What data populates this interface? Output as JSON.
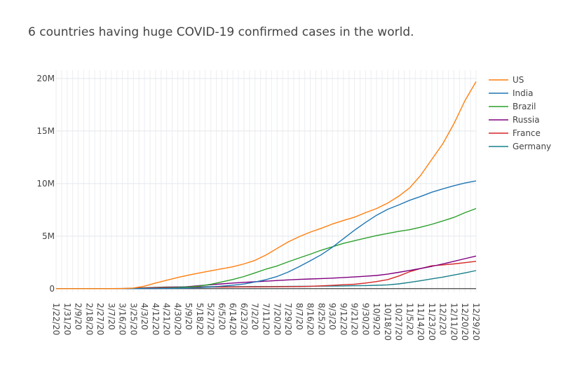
{
  "chart_data": {
    "type": "line",
    "title": "6 countries having huge COVID-19 confirmed cases in the world.",
    "xlabel": "",
    "ylabel": "",
    "grid": true,
    "legend_position": "top-right",
    "x_tick_labels": [
      "1/22/20",
      "1/31/20",
      "2/9/20",
      "2/18/20",
      "2/27/20",
      "3/7/20",
      "3/16/20",
      "3/25/20",
      "4/3/20",
      "4/12/20",
      "4/21/20",
      "4/30/20",
      "5/9/20",
      "5/18/20",
      "5/27/20",
      "6/5/20",
      "6/14/20",
      "6/23/20",
      "7/2/20",
      "7/11/20",
      "7/20/20",
      "7/29/20",
      "8/7/20",
      "8/16/20",
      "8/25/20",
      "9/3/20",
      "9/12/20",
      "9/21/20",
      "9/30/20",
      "10/9/20",
      "10/18/20",
      "10/27/20",
      "11/5/20",
      "11/14/20",
      "11/23/20",
      "12/2/20",
      "12/11/20",
      "12/20/20",
      "12/29/20"
    ],
    "y_ticks": [
      0,
      5000000,
      10000000,
      15000000,
      20000000
    ],
    "y_tick_labels": [
      "0",
      "5M",
      "10M",
      "15M",
      "20M"
    ],
    "ylim": [
      -350000,
      20800000
    ],
    "series": [
      {
        "name": "US",
        "color": "#ff7f0e",
        "values": [
          0,
          0,
          0,
          0,
          0,
          300,
          3500,
          54000,
          240000,
          530000,
          800000,
          1060000,
          1290000,
          1500000,
          1700000,
          1890000,
          2080000,
          2350000,
          2690000,
          3200000,
          3830000,
          4450000,
          4950000,
          5380000,
          5740000,
          6150000,
          6480000,
          6800000,
          7230000,
          7620000,
          8140000,
          8800000,
          9600000,
          10800000,
          12300000,
          13800000,
          15700000,
          17900000,
          19700000
        ]
      },
      {
        "name": "India",
        "color": "#1f77b4",
        "values": [
          0,
          1,
          3,
          3,
          3,
          34,
          114,
          657,
          2550,
          8450,
          20000,
          35000,
          60000,
          100000,
          160000,
          240000,
          330000,
          440000,
          630000,
          860000,
          1160000,
          1580000,
          2090000,
          2650000,
          3230000,
          3940000,
          4750000,
          5560000,
          6300000,
          6980000,
          7550000,
          7960000,
          8410000,
          8780000,
          9180000,
          9500000,
          9800000,
          10050000,
          10250000
        ]
      },
      {
        "name": "Brazil",
        "color": "#2ca02c",
        "values": [
          0,
          0,
          0,
          0,
          1,
          19,
          234,
          2433,
          10000,
          22000,
          43000,
          85000,
          156000,
          255000,
          410000,
          640000,
          870000,
          1150000,
          1500000,
          1860000,
          2160000,
          2550000,
          2920000,
          3280000,
          3660000,
          3980000,
          4310000,
          4560000,
          4810000,
          5050000,
          5250000,
          5450000,
          5610000,
          5850000,
          6120000,
          6440000,
          6780000,
          7230000,
          7620000
        ]
      },
      {
        "name": "Russia",
        "color": "#800080",
        "values": [
          0,
          2,
          2,
          2,
          2,
          10,
          93,
          658,
          4700,
          18000,
          57000,
          107000,
          200000,
          290000,
          370000,
          450000,
          530000,
          600000,
          650000,
          710000,
          770000,
          830000,
          880000,
          920000,
          960000,
          1000000,
          1060000,
          1110000,
          1180000,
          1250000,
          1380000,
          1550000,
          1730000,
          1920000,
          2120000,
          2350000,
          2600000,
          2850000,
          3100000
        ]
      },
      {
        "name": "France",
        "color": "#d62728",
        "values": [
          0,
          5,
          11,
          12,
          38,
          950,
          6600,
          25000,
          65000,
          93000,
          118000,
          128000,
          138000,
          142000,
          146000,
          151000,
          157000,
          162000,
          166000,
          172000,
          180000,
          190000,
          200000,
          225000,
          267000,
          312000,
          368000,
          420000,
          530000,
          670000,
          860000,
          1200000,
          1610000,
          1920000,
          2170000,
          2260000,
          2350000,
          2470000,
          2600000
        ]
      },
      {
        "name": "Germany",
        "color": "#17808a",
        "values": [
          0,
          5,
          14,
          16,
          46,
          800,
          7300,
          37000,
          85000,
          125000,
          148000,
          161000,
          171000,
          177000,
          181000,
          184000,
          187000,
          191000,
          196000,
          198000,
          202000,
          209000,
          218000,
          227000,
          238000,
          247000,
          260000,
          275000,
          290000,
          315000,
          360000,
          450000,
          600000,
          760000,
          930000,
          1100000,
          1300000,
          1500000,
          1720000
        ]
      }
    ]
  }
}
